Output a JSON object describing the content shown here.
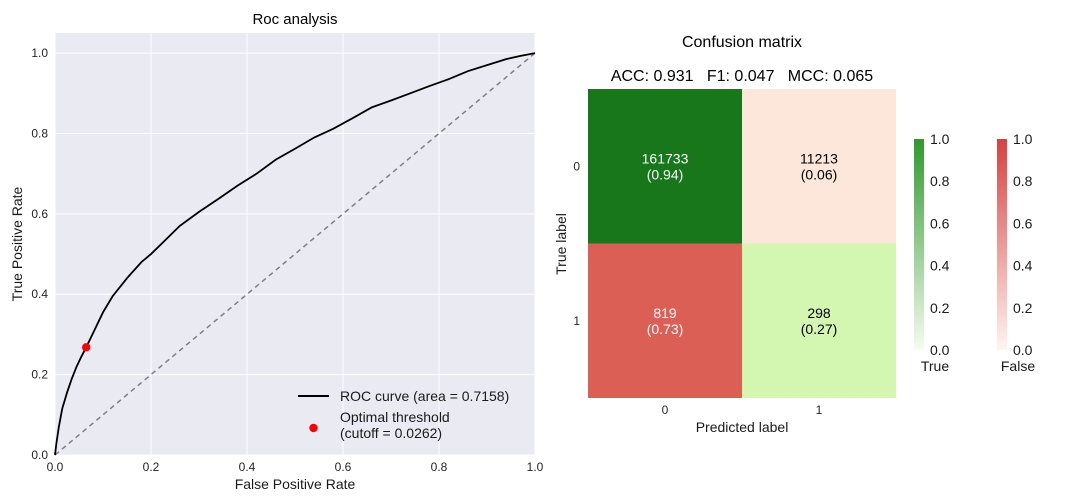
{
  "chart_data": [
    {
      "type": "line",
      "title": "Roc analysis",
      "xlabel": "False Positive Rate",
      "ylabel": "True Positive Rate",
      "xlim": [
        0,
        1
      ],
      "ylim": [
        0,
        1.05
      ],
      "xticks": [
        0,
        0.2,
        0.4,
        0.6,
        0.8,
        1.0
      ],
      "xtick_labels": [
        "0.0",
        "0.2",
        "0.4",
        "0.6",
        "0.8",
        "1.0"
      ],
      "yticks": [
        0,
        0.2,
        0.4,
        0.6,
        0.8,
        1.0
      ],
      "ytick_labels": [
        "0.0",
        "0.2",
        "0.4",
        "0.6",
        "0.8",
        "1.0"
      ],
      "grid": true,
      "legend_position": "bottom-right",
      "series": [
        {
          "name": "ROC curve (area = 0.7158)",
          "color": "#000000",
          "x": [
            0,
            0.003,
            0.008,
            0.015,
            0.025,
            0.035,
            0.045,
            0.055,
            0.065,
            0.08,
            0.1,
            0.12,
            0.15,
            0.18,
            0.2,
            0.23,
            0.26,
            0.3,
            0.34,
            0.38,
            0.42,
            0.46,
            0.5,
            0.54,
            0.58,
            0.62,
            0.66,
            0.7,
            0.74,
            0.78,
            0.82,
            0.86,
            0.9,
            0.94,
            0.97,
            1.0
          ],
          "y": [
            0,
            0.03,
            0.07,
            0.115,
            0.155,
            0.19,
            0.22,
            0.245,
            0.268,
            0.305,
            0.355,
            0.395,
            0.44,
            0.48,
            0.5,
            0.535,
            0.57,
            0.605,
            0.637,
            0.67,
            0.7,
            0.735,
            0.762,
            0.79,
            0.812,
            0.838,
            0.865,
            0.882,
            0.9,
            0.918,
            0.935,
            0.955,
            0.97,
            0.985,
            0.993,
            1.0
          ]
        },
        {
          "name": "Optimal threshold\n(cutoff = 0.0262)",
          "type": "scatter",
          "color": "#ff0000",
          "x": [
            0.065
          ],
          "y": [
            0.268
          ]
        },
        {
          "name": "",
          "type": "line",
          "style": "dashed",
          "color": "#808080",
          "x": [
            0,
            1
          ],
          "y": [
            0,
            1
          ]
        }
      ]
    },
    {
      "type": "heatmap",
      "title": "Confusion matrix",
      "subtitle": "ACC: 0.931   F1: 0.047   MCC: 0.065",
      "xlabel": "Predicted label",
      "ylabel": "True label",
      "x_categories": [
        "0",
        "1"
      ],
      "y_categories": [
        "0",
        "1"
      ],
      "values": [
        [
          161733,
          11213
        ],
        [
          819,
          298
        ]
      ],
      "labels": [
        [
          "0.94",
          "0.06"
        ],
        [
          "0.73",
          "0.27"
        ]
      ],
      "fractions": [
        [
          0.94,
          0.06
        ],
        [
          0.73,
          0.27
        ]
      ],
      "colorbars": [
        {
          "name": "True",
          "range": [
            0,
            1
          ],
          "ticks": [
            "0.0",
            "0.2",
            "0.4",
            "0.6",
            "0.8",
            "1.0"
          ],
          "color_low": "#f7fcf0",
          "color_high": "#2e9a2e"
        },
        {
          "name": "False",
          "range": [
            0,
            1
          ],
          "ticks": [
            "0.0",
            "0.2",
            "0.4",
            "0.6",
            "0.8",
            "1.0"
          ],
          "color_low": "#fff5ee",
          "color_high": "#d94040"
        }
      ],
      "cell_colors": [
        [
          "#17771a",
          "#fde7da"
        ],
        [
          "#dc5f56",
          "#d3f7b0"
        ]
      ],
      "cell_text_colors": [
        [
          "#ffffff",
          "#000000"
        ],
        [
          "#ffffff",
          "#000000"
        ]
      ]
    }
  ]
}
